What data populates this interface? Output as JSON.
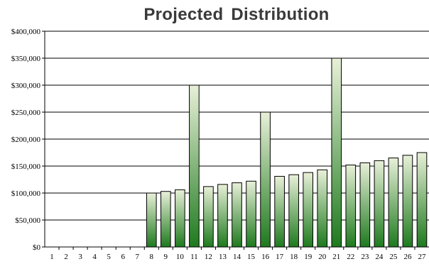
{
  "chart_data": {
    "type": "bar",
    "title": "Projected Distribution",
    "xlabel": "",
    "ylabel": "",
    "ylim": [
      0,
      400000
    ],
    "yticks": [
      "$0",
      "$50,000",
      "$100,000",
      "$150,000",
      "$200,000",
      "$250,000",
      "$300,000",
      "$350,000",
      "$400,000"
    ],
    "grid": true,
    "legend": "none",
    "categories": [
      "1",
      "2",
      "3",
      "4",
      "5",
      "6",
      "7",
      "8",
      "9",
      "10",
      "11",
      "12",
      "13",
      "14",
      "15",
      "16",
      "17",
      "18",
      "19",
      "20",
      "21",
      "22",
      "23",
      "24",
      "25",
      "26",
      "27"
    ],
    "values": [
      0,
      0,
      0,
      0,
      0,
      0,
      0,
      100000,
      103000,
      106000,
      300000,
      112000,
      116000,
      119000,
      122000,
      250000,
      131000,
      134000,
      138000,
      143000,
      350000,
      152000,
      156000,
      160000,
      165000,
      170000,
      175000
    ],
    "colors": {
      "bar_top": "#e8f0d8",
      "bar_bottom": "#1e7a1e",
      "bar_stroke": "#000000",
      "grid": "#000000"
    }
  }
}
